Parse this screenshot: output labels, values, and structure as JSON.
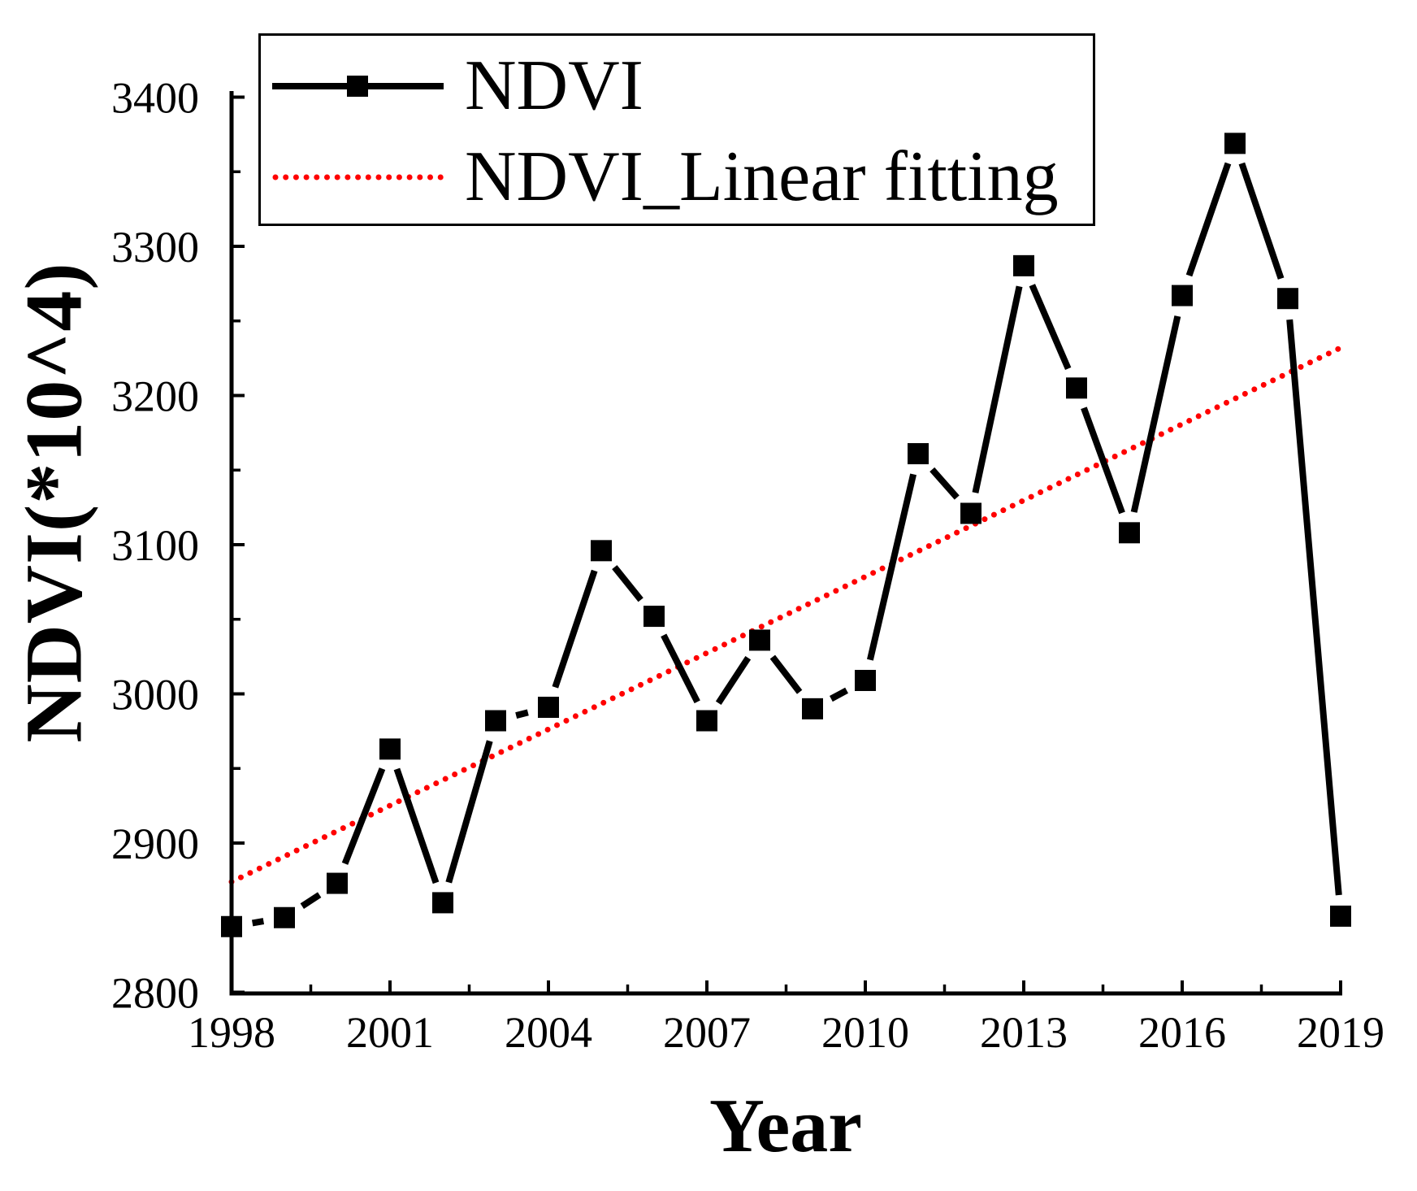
{
  "chart_data": {
    "type": "line",
    "title": "",
    "xlabel": "Year",
    "ylabel": "NDVI(*10^4)",
    "x": [
      1998,
      1999,
      2000,
      2001,
      2002,
      2003,
      2004,
      2005,
      2006,
      2007,
      2008,
      2009,
      2010,
      2011,
      2012,
      2013,
      2014,
      2015,
      2016,
      2017,
      2018,
      2019
    ],
    "series": [
      {
        "name": "NDVI",
        "type": "line+marker",
        "color": "#000000",
        "marker": "square",
        "values": [
          2844,
          2850,
          2873,
          2963,
          2860,
          2982,
          2991,
          3096,
          3052,
          2982,
          3036,
          2990,
          3009,
          3161,
          3121,
          3287,
          3205,
          3108,
          3267,
          3369,
          3265,
          2851
        ]
      },
      {
        "name": "NDVI_Linear fitting",
        "type": "fit-line",
        "color": "#FF0000",
        "style": "dotted",
        "x_start": 1998,
        "value_start": 2874,
        "x_end": 2019,
        "value_end": 3232
      }
    ],
    "xlim": [
      1998,
      2019
    ],
    "ylim": [
      2800,
      3400
    ],
    "x_ticks": [
      1998,
      2001,
      2004,
      2007,
      2010,
      2013,
      2016,
      2019
    ],
    "x_minor_ticks": [
      1999.5,
      2002.5,
      2005.5,
      2008.5,
      2011.5,
      2014.5,
      2017.5
    ],
    "y_ticks": [
      2800,
      2900,
      3000,
      3100,
      3200,
      3300,
      3400
    ],
    "y_minor_ticks": [
      2850,
      2950,
      3050,
      3150,
      3250,
      3350
    ],
    "grid": false,
    "legend_position": "top-left"
  },
  "legend": {
    "items": [
      {
        "label": "NDVI"
      },
      {
        "label": "NDVI_Linear fitting"
      }
    ]
  },
  "colors": {
    "series_line": "#000000",
    "fit_line": "#FF0000",
    "background": "#FFFFFF",
    "text": "#000000"
  }
}
